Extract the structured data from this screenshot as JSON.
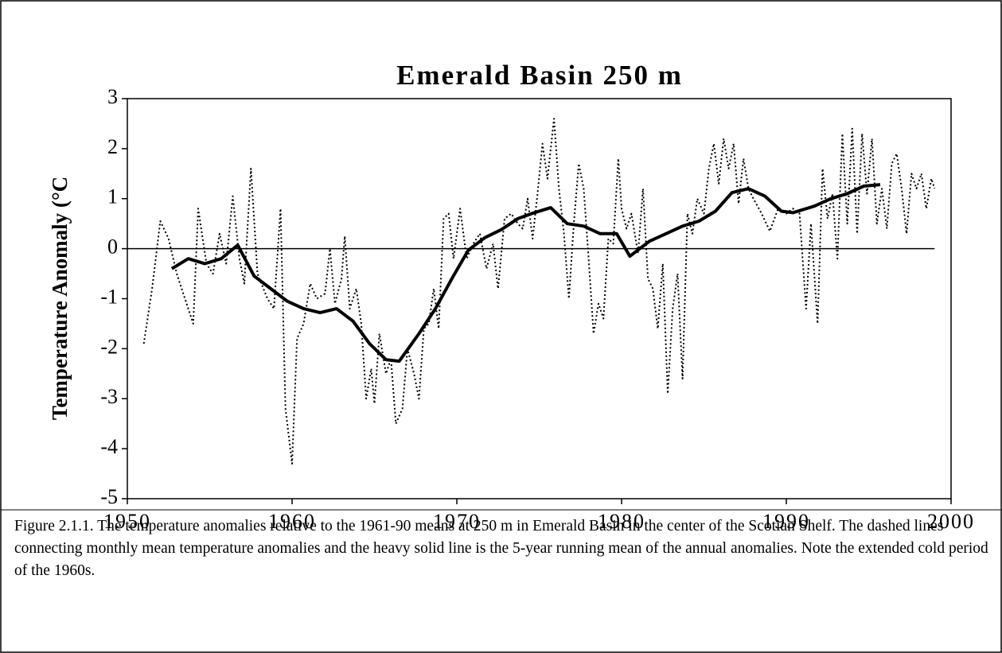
{
  "chart_data": {
    "type": "line",
    "title": "Emerald Basin 250 m",
    "y_label": "Temperature Anomaly (°C",
    "caption": "Figure 2.1.1. The temperature anomalies relative to the 1961-90 means at 250 m in Emerald Basin in the center of the Scotian Shelf. The dashed lines connecting monthly mean temperature anomalies and the heavy solid line is the 5-year running mean of the annual anomalies. Note the extended cold period of the 1960s.",
    "xlim": [
      1950,
      2000
    ],
    "xticks": [
      1950,
      1960,
      1970,
      1980,
      1990,
      2000
    ],
    "ylim": [
      -5,
      3
    ],
    "yticks": [
      -5,
      -4,
      -3,
      -2,
      -1,
      0,
      1,
      2,
      3
    ],
    "series": [
      {
        "color": "#000000",
        "style": "dotted",
        "x": [
          1951.0,
          1951.5,
          1952.0,
          1952.5,
          1953.0,
          1953.5,
          1954.0,
          1954.3,
          1954.8,
          1955.2,
          1955.6,
          1956.0,
          1956.4,
          1956.8,
          1957.1,
          1957.5,
          1957.9,
          1958.5,
          1958.9,
          1959.3,
          1959.6,
          1960.0,
          1960.3,
          1960.7,
          1961.1,
          1961.5,
          1962.0,
          1962.3,
          1962.6,
          1963.0,
          1963.2,
          1963.5,
          1963.9,
          1964.2,
          1964.5,
          1964.8,
          1965.0,
          1965.3,
          1965.7,
          1966.0,
          1966.3,
          1966.7,
          1967.0,
          1967.4,
          1967.7,
          1968.0,
          1968.3,
          1968.6,
          1968.9,
          1969.2,
          1969.5,
          1969.8,
          1970.2,
          1970.6,
          1971.0,
          1971.4,
          1971.8,
          1972.2,
          1972.5,
          1972.9,
          1973.3,
          1973.7,
          1974.0,
          1974.3,
          1974.6,
          1974.9,
          1975.2,
          1975.5,
          1975.9,
          1976.2,
          1976.5,
          1976.8,
          1977.1,
          1977.4,
          1977.7,
          1978.0,
          1978.3,
          1978.6,
          1978.9,
          1979.2,
          1979.5,
          1979.8,
          1980.0,
          1980.3,
          1980.6,
          1981.0,
          1981.3,
          1981.6,
          1981.9,
          1982.2,
          1982.5,
          1982.8,
          1983.1,
          1983.4,
          1983.7,
          1984.0,
          1984.3,
          1984.6,
          1985.0,
          1985.3,
          1985.6,
          1985.9,
          1986.2,
          1986.5,
          1986.8,
          1987.1,
          1987.4,
          1987.7,
          1988.0,
          1988.5,
          1989.0,
          1989.5,
          1990.0,
          1990.4,
          1990.8,
          1991.2,
          1991.5,
          1991.9,
          1992.2,
          1992.5,
          1992.8,
          1993.1,
          1993.4,
          1993.7,
          1994.0,
          1994.3,
          1994.6,
          1994.9,
          1995.2,
          1995.5,
          1995.8,
          1996.1,
          1996.4,
          1996.7,
          1997.0,
          1997.3,
          1997.6,
          1997.9,
          1998.2,
          1998.5,
          1998.8,
          1999.0
        ],
        "values": [
          -1.9,
          -0.8,
          0.55,
          0.2,
          -0.5,
          -1.0,
          -1.5,
          0.8,
          -0.3,
          -0.5,
          0.3,
          -0.3,
          1.05,
          -0.2,
          -0.7,
          1.6,
          -0.5,
          -1.0,
          -1.2,
          0.8,
          -3.2,
          -4.3,
          -1.8,
          -1.5,
          -0.7,
          -1.0,
          -0.9,
          0.0,
          -1.1,
          -0.6,
          0.25,
          -1.2,
          -0.8,
          -1.5,
          -3.0,
          -2.4,
          -3.1,
          -1.7,
          -2.5,
          -2.2,
          -3.5,
          -3.2,
          -2.0,
          -2.5,
          -3.0,
          -1.6,
          -1.5,
          -0.8,
          -1.6,
          0.6,
          0.7,
          -0.2,
          0.8,
          -0.2,
          0.1,
          0.3,
          -0.4,
          0.1,
          -0.8,
          0.6,
          0.7,
          0.5,
          0.4,
          1.0,
          0.2,
          1.1,
          2.1,
          1.4,
          2.6,
          1.2,
          0.3,
          -1.0,
          0.5,
          1.7,
          1.2,
          -0.2,
          -1.7,
          -1.1,
          -1.4,
          0.2,
          0.1,
          1.8,
          0.8,
          0.4,
          0.7,
          -0.1,
          1.2,
          -0.6,
          -0.8,
          -1.6,
          -0.3,
          -2.9,
          -1.2,
          -0.5,
          -2.6,
          0.7,
          0.3,
          1.0,
          0.7,
          1.6,
          2.1,
          1.3,
          2.2,
          1.6,
          2.1,
          0.9,
          1.8,
          1.2,
          1.0,
          0.7,
          0.35,
          0.8,
          0.7,
          0.8,
          0.7,
          -1.2,
          0.5,
          -1.5,
          1.6,
          0.6,
          1.1,
          -0.2,
          2.3,
          0.5,
          2.4,
          0.3,
          2.3,
          1.1,
          2.2,
          0.5,
          1.2,
          0.4,
          1.7,
          1.9,
          1.2,
          0.3,
          1.5,
          1.2,
          1.5,
          0.8,
          1.4,
          1.2
        ]
      },
      {
        "color": "#000000",
        "style": "solid",
        "x": [
          1952.7,
          1953.7,
          1954.7,
          1955.7,
          1956.7,
          1957.7,
          1958.7,
          1959.7,
          1960.7,
          1961.7,
          1962.7,
          1963.7,
          1964.7,
          1965.7,
          1966.5,
          1967.7,
          1968.7,
          1969.7,
          1970.7,
          1971.7,
          1972.7,
          1973.7,
          1974.7,
          1975.7,
          1976.7,
          1977.7,
          1978.7,
          1979.7,
          1980.5,
          1981.7,
          1982.7,
          1983.7,
          1984.7,
          1985.7,
          1986.7,
          1987.7,
          1988.7,
          1989.7,
          1990.4,
          1991.7,
          1992.7,
          1993.7,
          1994.7,
          1995.7
        ],
        "values": [
          -0.4,
          -0.2,
          -0.3,
          -0.2,
          0.07,
          -0.55,
          -0.8,
          -1.05,
          -1.2,
          -1.28,
          -1.2,
          -1.45,
          -1.9,
          -2.22,
          -2.25,
          -1.7,
          -1.2,
          -0.6,
          -0.03,
          0.22,
          0.38,
          0.6,
          0.72,
          0.82,
          0.5,
          0.45,
          0.3,
          0.3,
          -0.15,
          0.15,
          0.3,
          0.45,
          0.55,
          0.75,
          1.12,
          1.2,
          1.05,
          0.75,
          0.72,
          0.85,
          1.0,
          1.1,
          1.25,
          1.28
        ]
      }
    ]
  }
}
